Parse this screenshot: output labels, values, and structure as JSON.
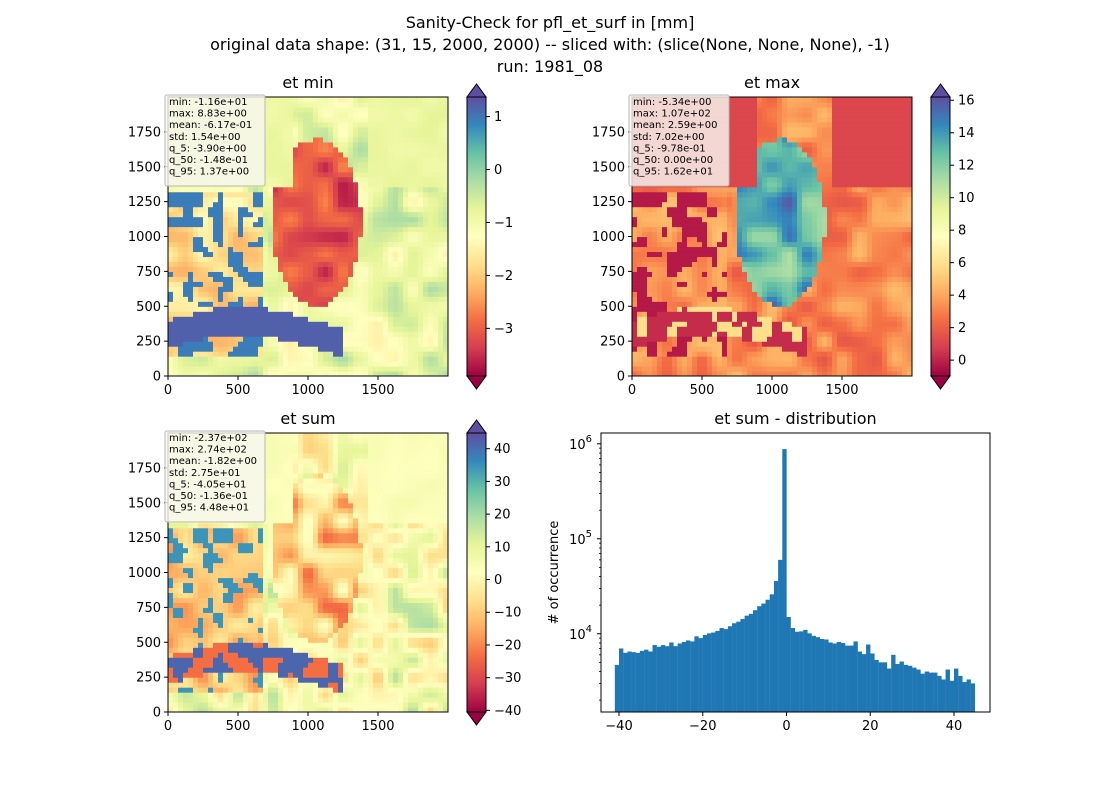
{
  "suptitle": {
    "line1": "Sanity-Check for pfl_et_surf in [mm]",
    "line2": "original data shape: (31, 15, 2000, 2000) -- sliced with: (slice(None, None, None), -1)",
    "line3": "run: 1981_08"
  },
  "chart_data": [
    {
      "type": "heatmap",
      "title": "et min",
      "xlim": [
        0,
        2000
      ],
      "ylim": [
        0,
        2000
      ],
      "xticks": [
        0,
        500,
        1000,
        1500
      ],
      "yticks": [
        0,
        250,
        500,
        750,
        1000,
        1250,
        1500,
        1750
      ],
      "colormap": "Spectral",
      "colorbar": {
        "range": [
          -3.9,
          1.37
        ],
        "ticks": [
          "1",
          "0",
          "−1",
          "−2",
          "−3"
        ],
        "tick_values": [
          1,
          0,
          -1,
          -2,
          -3
        ],
        "extend": "both"
      },
      "stats": [
        "min: -1.16e+01",
        "max: 8.83e+00",
        "mean: -6.17e-01",
        "std: 1.54e+00",
        "q_5: -3.90e+00",
        "q_50: -1.48e-01",
        "q_95: 1.37e+00"
      ]
    },
    {
      "type": "heatmap",
      "title": "et max",
      "xlim": [
        0,
        2000
      ],
      "ylim": [
        0,
        2000
      ],
      "xticks": [
        0,
        500,
        1000,
        1500
      ],
      "yticks": [
        0,
        250,
        500,
        750,
        1000,
        1250,
        1500,
        1750
      ],
      "colormap": "Spectral",
      "colorbar": {
        "range": [
          -0.978,
          16.2
        ],
        "ticks": [
          "16",
          "14",
          "12",
          "10",
          "8",
          "6",
          "4",
          "2",
          "0"
        ],
        "tick_values": [
          16,
          14,
          12,
          10,
          8,
          6,
          4,
          2,
          0
        ],
        "extend": "both"
      },
      "stats": [
        "min: -5.34e+00",
        "max: 1.07e+02",
        "mean: 2.59e+00",
        "std: 7.02e+00",
        "q_5: -9.78e-01",
        "q_50: 0.00e+00",
        "q_95: 1.62e+01"
      ]
    },
    {
      "type": "heatmap",
      "title": "et sum",
      "xlim": [
        0,
        2000
      ],
      "ylim": [
        0,
        2000
      ],
      "xticks": [
        0,
        500,
        1000,
        1500
      ],
      "yticks": [
        0,
        250,
        500,
        750,
        1000,
        1250,
        1500,
        1750
      ],
      "colormap": "Spectral",
      "colorbar": {
        "range": [
          -40.5,
          44.8
        ],
        "ticks": [
          "40",
          "30",
          "20",
          "10",
          "0",
          "−10",
          "−20",
          "−30",
          "−40"
        ],
        "tick_values": [
          40,
          30,
          20,
          10,
          0,
          -10,
          -20,
          -30,
          -40
        ],
        "extend": "both"
      },
      "stats": [
        "min: -2.37e+02",
        "max: 2.74e+02",
        "mean: -1.82e+00",
        "std: 2.75e+01",
        "q_5: -4.05e+01",
        "q_50: -1.36e-01",
        "q_95: 4.48e+01"
      ]
    },
    {
      "type": "bar",
      "title": "et sum - distribution",
      "ylabel": "# of occurrence",
      "xlabel": "",
      "yscale": "log",
      "xlim": [
        -44.3,
        48.6
      ],
      "ylim": [
        1500,
        1300000
      ],
      "xticks": [
        -40,
        -20,
        0,
        20,
        40
      ],
      "xtick_labels": [
        "−40",
        "−20",
        "0",
        "20",
        "40"
      ],
      "yticks": [
        10000,
        100000,
        1000000
      ],
      "ytick_labels": [
        "10",
        "10",
        "10"
      ],
      "ytick_exponents": [
        "4",
        "5",
        "6"
      ],
      "bar_color": "#1f77b4",
      "bins": {
        "x": [
          -40.5,
          -39.5,
          -38.5,
          -37.5,
          -36.5,
          -35.5,
          -34.5,
          -33.5,
          -32.5,
          -31.5,
          -30.5,
          -29.5,
          -28.5,
          -27.5,
          -26.5,
          -25.5,
          -24.5,
          -23.5,
          -22.5,
          -21.5,
          -20.5,
          -19.5,
          -18.5,
          -17.5,
          -16.5,
          -15.5,
          -14.5,
          -13.5,
          -12.5,
          -11.5,
          -10.5,
          -9.5,
          -8.5,
          -7.5,
          -6.5,
          -5.5,
          -4.5,
          -3.5,
          -2.5,
          -1.5,
          -0.5,
          0.5,
          1.5,
          2.5,
          3.5,
          4.5,
          5.5,
          6.5,
          7.5,
          8.5,
          9.5,
          10.5,
          11.5,
          12.5,
          13.5,
          14.5,
          15.5,
          16.5,
          17.5,
          18.5,
          19.5,
          20.5,
          21.5,
          22.5,
          23.5,
          24.5,
          25.5,
          26.5,
          27.5,
          28.5,
          29.5,
          30.5,
          31.5,
          32.5,
          33.5,
          34.5,
          35.5,
          36.5,
          37.5,
          38.5,
          39.5,
          40.5,
          41.5,
          42.5,
          43.5,
          44.5
        ],
        "counts": [
          4700,
          7000,
          6300,
          6500,
          6400,
          6300,
          6600,
          6800,
          6500,
          7600,
          7300,
          7600,
          7400,
          8100,
          7400,
          7900,
          8200,
          8500,
          8300,
          9400,
          9000,
          9700,
          10100,
          10300,
          10700,
          11500,
          11200,
          12000,
          12900,
          13400,
          14300,
          15500,
          16200,
          17700,
          19500,
          20800,
          22800,
          26000,
          36000,
          60000,
          880000,
          15000,
          11500,
          10500,
          10600,
          11000,
          10100,
          9500,
          9200,
          8800,
          8700,
          8100,
          7900,
          8200,
          8000,
          7500,
          7500,
          8300,
          6500,
          6100,
          7700,
          6200,
          5300,
          5000,
          5000,
          4300,
          6000,
          4800,
          5100,
          4700,
          4600,
          4400,
          4200,
          3800,
          4000,
          3900,
          3900,
          3600,
          3300,
          4200,
          3200,
          4300,
          3600,
          3100,
          3300,
          3000
        ]
      }
    }
  ]
}
